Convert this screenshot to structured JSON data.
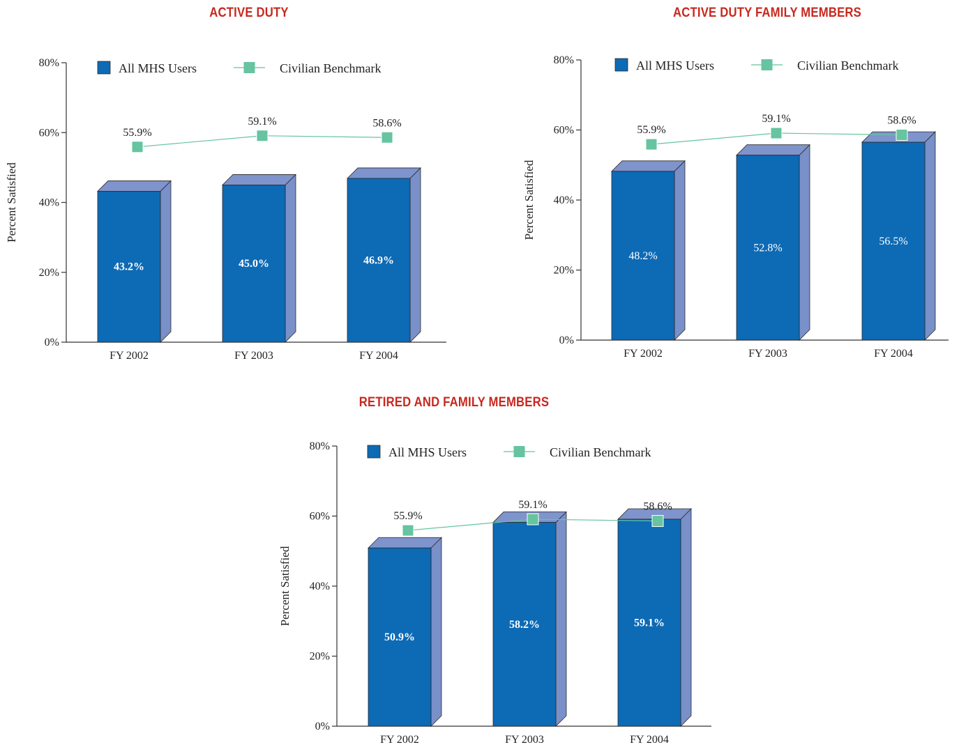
{
  "colors": {
    "title": "#c8281e",
    "bar_front": "#0d6ab5",
    "bar_side": "#7990c9",
    "bar_top": "#7f93cc",
    "benchmark": "#66c4a0",
    "axis": "#333333"
  },
  "legend": {
    "bars_label": "All MHS Users",
    "line_label": "Civilian Benchmark"
  },
  "chart_data": [
    {
      "type": "bar",
      "title": "ACTIVE DUTY",
      "ylabel": "Percent Satisfied",
      "xlabel": "",
      "ylim": [
        0,
        80
      ],
      "yticks": [
        "0%",
        "20%",
        "40%",
        "60%",
        "80%"
      ],
      "categories": [
        "FY 2002",
        "FY 2003",
        "FY 2004"
      ],
      "legend_position": "top",
      "series": [
        {
          "name": "All MHS Users",
          "type": "bar",
          "values": [
            43.2,
            45.0,
            46.9
          ],
          "labels": [
            "43.2%",
            "45.0%",
            "46.9%"
          ]
        },
        {
          "name": "Civilian Benchmark",
          "type": "line",
          "values": [
            55.9,
            59.1,
            58.6
          ],
          "labels": [
            "55.9%",
            "59.1%",
            "58.6%"
          ]
        }
      ]
    },
    {
      "type": "bar",
      "title": "ACTIVE DUTY FAMILY MEMBERS",
      "ylabel": "Percent Satisfied",
      "xlabel": "",
      "ylim": [
        0,
        80
      ],
      "yticks": [
        "0%",
        "20%",
        "40%",
        "60%",
        "80%"
      ],
      "categories": [
        "FY 2002",
        "FY 2003",
        "FY 2004"
      ],
      "legend_position": "top",
      "series": [
        {
          "name": "All MHS Users",
          "type": "bar",
          "values": [
            48.2,
            52.8,
            56.5
          ],
          "labels": [
            "48.2%",
            "52.8%",
            "56.5%"
          ]
        },
        {
          "name": "Civilian Benchmark",
          "type": "line",
          "values": [
            55.9,
            59.1,
            58.6
          ],
          "labels": [
            "55.9%",
            "59.1%",
            "58.6%"
          ]
        }
      ]
    },
    {
      "type": "bar",
      "title": "RETIRED AND FAMILY MEMBERS",
      "ylabel": "Percent Satisfied",
      "xlabel": "",
      "ylim": [
        0,
        80
      ],
      "yticks": [
        "0%",
        "20%",
        "40%",
        "60%",
        "80%"
      ],
      "categories": [
        "FY 2002",
        "FY 2003",
        "FY 2004"
      ],
      "legend_position": "top",
      "series": [
        {
          "name": "All MHS Users",
          "type": "bar",
          "values": [
            50.9,
            58.2,
            59.1
          ],
          "labels": [
            "50.9%",
            "58.2%",
            "59.1%"
          ]
        },
        {
          "name": "Civilian Benchmark",
          "type": "line",
          "values": [
            55.9,
            59.1,
            58.6
          ],
          "labels": [
            "55.9%",
            "59.1%",
            "58.6%"
          ]
        }
      ]
    }
  ]
}
